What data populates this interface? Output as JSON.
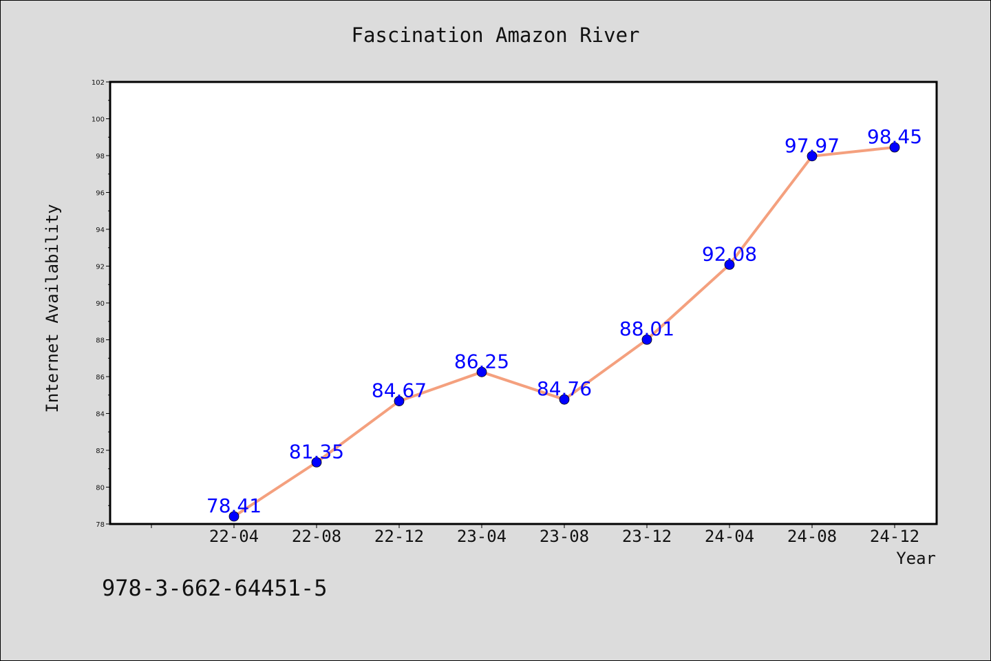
{
  "chart_data": {
    "type": "line",
    "title": "Fascination Amazon River",
    "xlabel": "Year",
    "ylabel": "Internet Availability",
    "categories": [
      "22-04",
      "22-08",
      "22-12",
      "23-04",
      "23-08",
      "23-12",
      "24-04",
      "24-08",
      "24-12"
    ],
    "series": [
      {
        "values": [
          78.41,
          81.35,
          84.67,
          86.25,
          84.76,
          88.01,
          92.08,
          97.97,
          98.45
        ],
        "labels": [
          "78.41",
          "81.35",
          "84.67",
          "86.25",
          "84.76",
          "88.01",
          "92.08",
          "97.97",
          "98.45"
        ],
        "line_color": "#f4a07e",
        "marker_color": "#0000ff",
        "label_color": "#0000ff"
      }
    ],
    "ylim": [
      78,
      102
    ],
    "yticks": [
      "78",
      "80",
      "82",
      "84",
      "86",
      "88",
      "90",
      "92",
      "94",
      "96",
      "98",
      "100",
      "102"
    ],
    "grid": false,
    "legend": "none"
  },
  "footer_text": "978-3-662-64451-5"
}
